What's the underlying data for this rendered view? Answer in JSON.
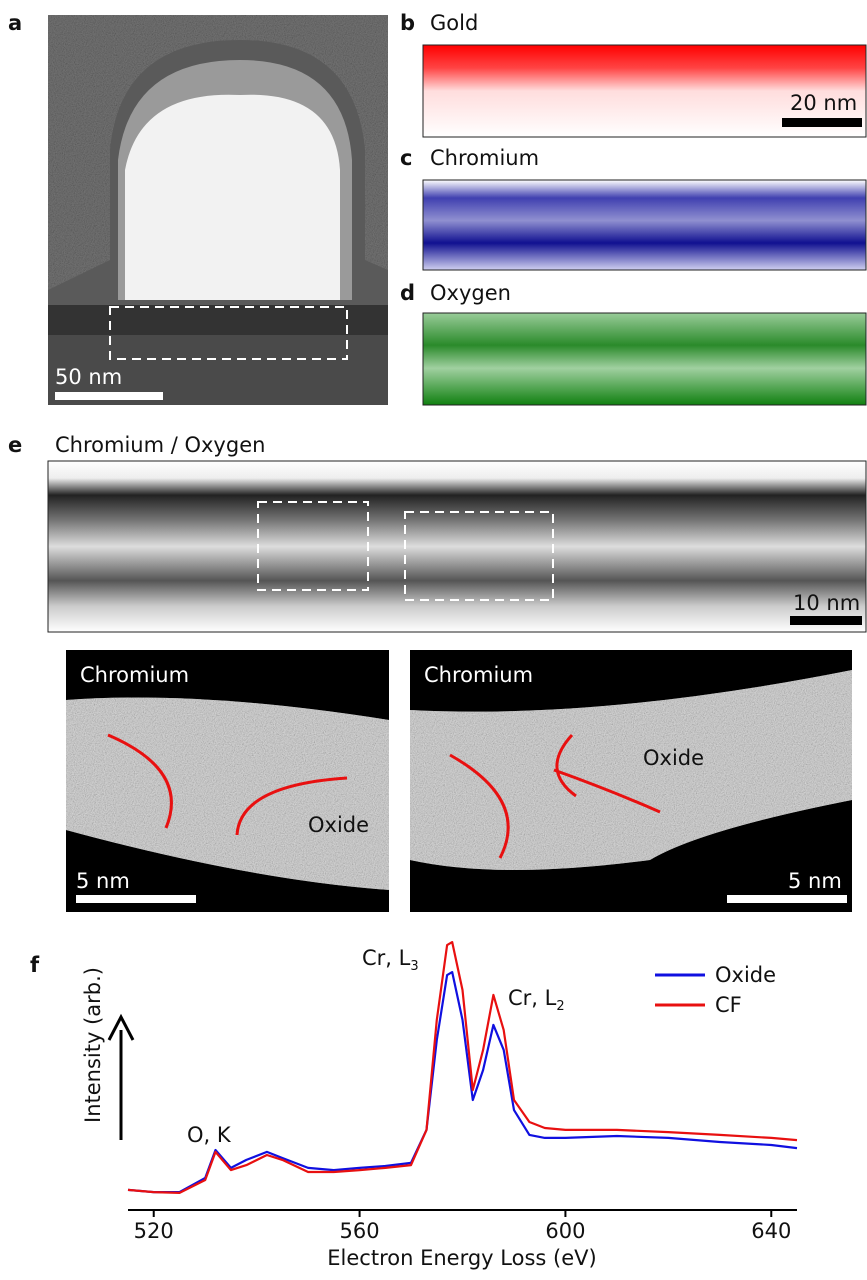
{
  "panels": [
    {
      "label": "a",
      "scale_bar": "50 nm"
    },
    {
      "label": "b",
      "title": "Gold",
      "scale_bar": "20 nm"
    },
    {
      "label": "c",
      "title": "Chromium"
    },
    {
      "label": "d",
      "title": "Oxygen"
    },
    {
      "label": "e",
      "title": "Chromium / Oxygen",
      "scale_bar": "10 nm"
    },
    {
      "label": "f"
    }
  ],
  "insets": [
    {
      "top_label": "Chromium",
      "region_label": "Oxide",
      "scale_bar": "5 nm"
    },
    {
      "top_label": "Chromium",
      "region_label": "Oxide",
      "scale_bar": "5 nm"
    }
  ],
  "chart_data": {
    "type": "line",
    "x": [
      515,
      520,
      525,
      530,
      532,
      535,
      538,
      542,
      545,
      550,
      555,
      560,
      565,
      570,
      573,
      575,
      577,
      578,
      580,
      582,
      584,
      586,
      588,
      590,
      593,
      596,
      600,
      610,
      620,
      630,
      640,
      645
    ],
    "series": [
      {
        "name": "Oxide",
        "color": "#1010e0",
        "values": [
          5.5,
          4.7,
          4.7,
          9.8,
          20,
          13.5,
          16.4,
          19.3,
          17.1,
          13.5,
          12.7,
          13.5,
          14.2,
          15.3,
          27.3,
          60,
          83.6,
          84.7,
          67.3,
          38.2,
          49.1,
          65.5,
          56.4,
          34.5,
          25.5,
          24.4,
          24.4,
          25.1,
          24.4,
          22.9,
          21.8,
          20.7
        ]
      },
      {
        "name": "CF",
        "color": "#e81010",
        "values": [
          5.5,
          4.7,
          4.4,
          9.1,
          19.3,
          12.7,
          14.5,
          18.2,
          16.4,
          12,
          12,
          12.7,
          13.5,
          14.5,
          27.3,
          67.3,
          94.5,
          95.6,
          78.2,
          41.8,
          56.4,
          76.4,
          63.6,
          38.2,
          30.2,
          28,
          27.3,
          27.3,
          26.5,
          25.5,
          24.4,
          23.6
        ]
      }
    ],
    "xlim": [
      515,
      645
    ],
    "xticks": [
      520,
      560,
      600,
      640
    ],
    "ylim": [
      0,
      100
    ],
    "xlabel": "Electron Energy Loss (eV)",
    "ylabel": "Intensity (arb.)",
    "annotations": [
      {
        "text": "O, K"
      },
      {
        "text": "Cr, L",
        "sub": "3"
      },
      {
        "text": "Cr, L",
        "sub": "2"
      }
    ],
    "legend": "upper right"
  }
}
